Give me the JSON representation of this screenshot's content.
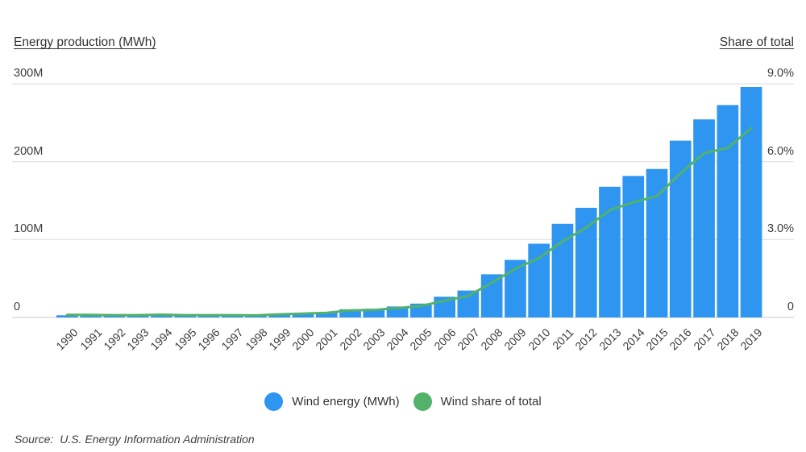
{
  "header": {
    "left_title": "Energy production (MWh)",
    "right_title": "Share of total"
  },
  "axes": {
    "left_ticks": [
      "300M",
      "200M",
      "100M",
      "0"
    ],
    "right_ticks": [
      "9.0%",
      "6.0%",
      "3.0%",
      "0"
    ]
  },
  "legend": {
    "items": [
      {
        "label": "Wind energy (MWh)",
        "color": "#2E96F0"
      },
      {
        "label": "Wind share of total",
        "color": "#52B26A"
      }
    ]
  },
  "source": {
    "prefix": "Source:",
    "text": "U.S. Energy Information Administration"
  },
  "chart_data": {
    "type": "combo-bar-line",
    "x": [
      1990,
      1991,
      1992,
      1993,
      1994,
      1995,
      1996,
      1997,
      1998,
      1999,
      2000,
      2001,
      2002,
      2003,
      2004,
      2005,
      2006,
      2007,
      2008,
      2009,
      2010,
      2011,
      2012,
      2013,
      2014,
      2015,
      2016,
      2017,
      2018,
      2019
    ],
    "series": [
      {
        "name": "Wind energy (MWh)",
        "type": "bar",
        "axis": "left",
        "unit": "million MWh",
        "values": [
          2.8,
          3.0,
          2.9,
          3.0,
          3.4,
          3.2,
          3.2,
          3.3,
          3.0,
          4.5,
          5.6,
          6.7,
          10.4,
          11.2,
          14.1,
          17.8,
          26.6,
          34.5,
          55.4,
          73.9,
          94.7,
          120.2,
          140.8,
          167.8,
          181.7,
          190.7,
          227.0,
          254.3,
          272.7,
          295.9
        ]
      },
      {
        "name": "Wind share of total",
        "type": "line",
        "axis": "right",
        "unit": "%",
        "values": [
          0.1,
          0.1,
          0.09,
          0.09,
          0.11,
          0.09,
          0.09,
          0.09,
          0.08,
          0.12,
          0.15,
          0.18,
          0.27,
          0.29,
          0.36,
          0.44,
          0.65,
          0.83,
          1.34,
          1.87,
          2.29,
          2.93,
          3.46,
          4.13,
          4.44,
          4.67,
          5.55,
          6.33,
          6.53,
          7.29
        ]
      }
    ],
    "left_axis": {
      "label": "Energy production (MWh)",
      "range": [
        0,
        300
      ],
      "unit": "million MWh",
      "ticks": [
        "0",
        "100M",
        "200M",
        "300M"
      ]
    },
    "right_axis": {
      "label": "Share of total",
      "range": [
        0,
        9
      ],
      "unit": "%",
      "ticks": [
        "0",
        "3.0%",
        "6.0%",
        "9.0%"
      ]
    },
    "grid": "horizontal",
    "legend_position": "bottom-center",
    "title": "",
    "xlabel": "",
    "ylabel": "Energy production (MWh)"
  }
}
